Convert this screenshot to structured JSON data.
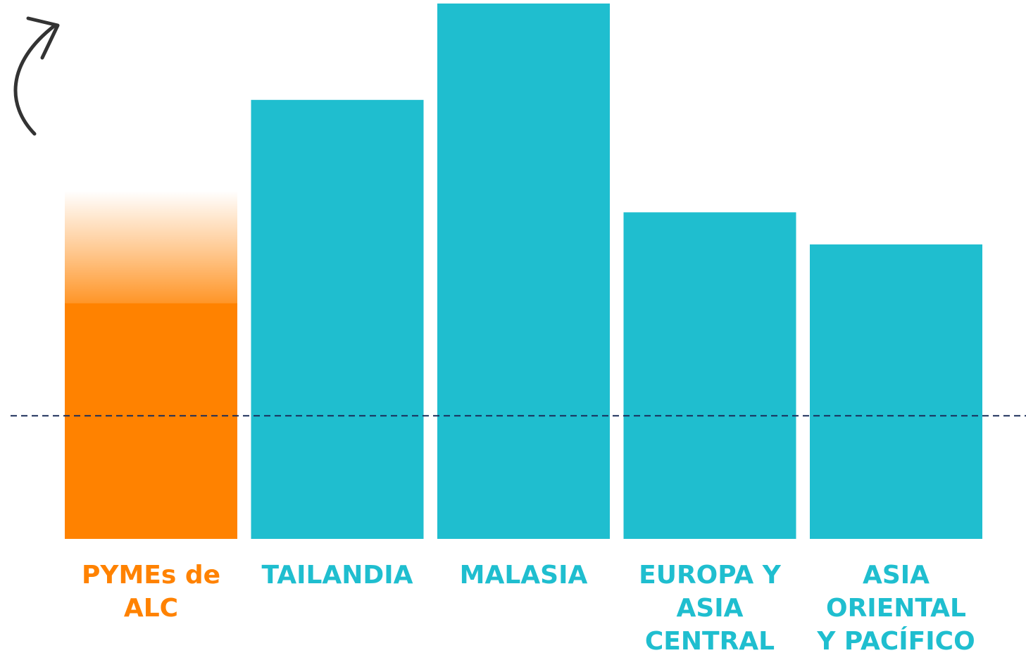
{
  "chart_data": {
    "type": "bar",
    "title": "",
    "xlabel": "",
    "ylabel": "",
    "categories": [
      [
        "PYMEs de",
        "ALC"
      ],
      [
        "TAILANDIA"
      ],
      [
        "MALASIA"
      ],
      [
        "EUROPA Y",
        "ASIA",
        "CENTRAL"
      ],
      [
        "ASIA",
        "ORIENTAL",
        "Y PACÍFICO"
      ]
    ],
    "values": [
      44,
      82,
      100,
      61,
      55
    ],
    "potential_value": 65,
    "reference_line": 23,
    "ylim": [
      0,
      100
    ],
    "grid": false,
    "legend": "none",
    "colors": {
      "highlight": "#FF8200",
      "bars": "#1FBECF",
      "reference_line": "#1B2E5A",
      "arrow": "#333333"
    },
    "label_colors": [
      "#FF8200",
      "#1FBECF",
      "#1FBECF",
      "#1FBECF",
      "#1FBECF"
    ]
  }
}
